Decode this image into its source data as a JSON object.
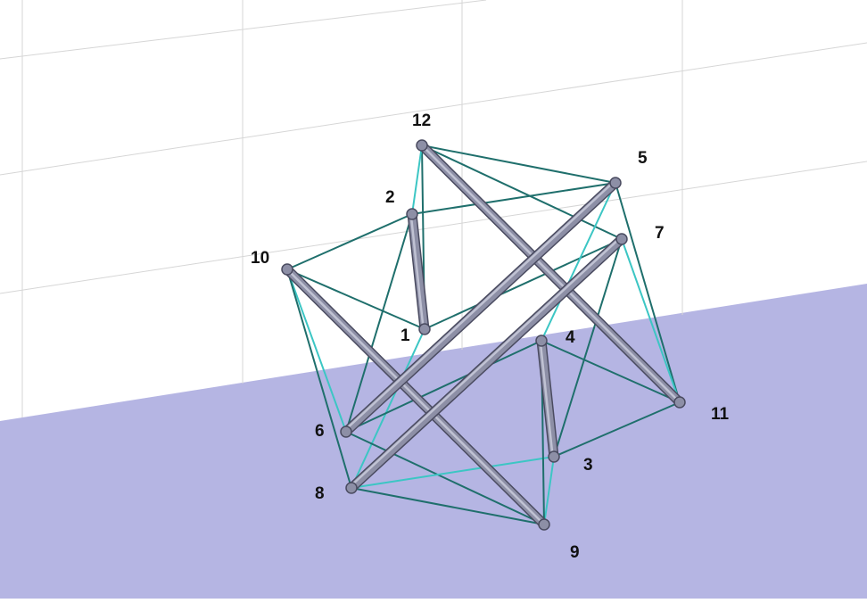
{
  "colors": {
    "background": "#ffffff",
    "ground_plane": "#b5b5e3",
    "grid_line": "#d6d6d6",
    "strut_dark": "#4a4b60",
    "strut_mid": "#8d8fa6",
    "strut_light": "#c9cbda",
    "cable_dark": "#1f6f6c",
    "cable_light": "#3cc6c4"
  },
  "nodes": [
    {
      "id": "1",
      "label": "1"
    },
    {
      "id": "2",
      "label": "2"
    },
    {
      "id": "3",
      "label": "3"
    },
    {
      "id": "4",
      "label": "4"
    },
    {
      "id": "5",
      "label": "5"
    },
    {
      "id": "6",
      "label": "6"
    },
    {
      "id": "7",
      "label": "7"
    },
    {
      "id": "8",
      "label": "8"
    },
    {
      "id": "9",
      "label": "9"
    },
    {
      "id": "10",
      "label": "10"
    },
    {
      "id": "11",
      "label": "11"
    },
    {
      "id": "12",
      "label": "12"
    }
  ],
  "struts": [
    {
      "from": "2",
      "to": "1"
    },
    {
      "from": "4",
      "to": "3"
    },
    {
      "from": "12",
      "to": "11"
    },
    {
      "from": "10",
      "to": "9"
    },
    {
      "from": "5",
      "to": "6"
    },
    {
      "from": "7",
      "to": "8"
    }
  ],
  "cables": [
    {
      "from": "12",
      "to": "5",
      "shade": "dark"
    },
    {
      "from": "12",
      "to": "7",
      "shade": "dark"
    },
    {
      "from": "12",
      "to": "1",
      "shade": "dark"
    },
    {
      "from": "12",
      "to": "2",
      "shade": "light"
    },
    {
      "from": "2",
      "to": "5",
      "shade": "dark"
    },
    {
      "from": "2",
      "to": "10",
      "shade": "dark"
    },
    {
      "from": "2",
      "to": "6",
      "shade": "dark"
    },
    {
      "from": "10",
      "to": "1",
      "shade": "dark"
    },
    {
      "from": "10",
      "to": "6",
      "shade": "light"
    },
    {
      "from": "10",
      "to": "8",
      "shade": "dark"
    },
    {
      "from": "1",
      "to": "7",
      "shade": "dark"
    },
    {
      "from": "1",
      "to": "8",
      "shade": "light"
    },
    {
      "from": "5",
      "to": "4",
      "shade": "light"
    },
    {
      "from": "5",
      "to": "11",
      "shade": "dark"
    },
    {
      "from": "7",
      "to": "11",
      "shade": "light"
    },
    {
      "from": "7",
      "to": "3",
      "shade": "dark"
    },
    {
      "from": "6",
      "to": "4",
      "shade": "dark"
    },
    {
      "from": "6",
      "to": "9",
      "shade": "dark"
    },
    {
      "from": "8",
      "to": "3",
      "shade": "light"
    },
    {
      "from": "8",
      "to": "9",
      "shade": "dark"
    },
    {
      "from": "4",
      "to": "11",
      "shade": "dark"
    },
    {
      "from": "3",
      "to": "11",
      "shade": "dark"
    },
    {
      "from": "3",
      "to": "9",
      "shade": "light"
    },
    {
      "from": "4",
      "to": "9",
      "shade": "dark"
    }
  ]
}
